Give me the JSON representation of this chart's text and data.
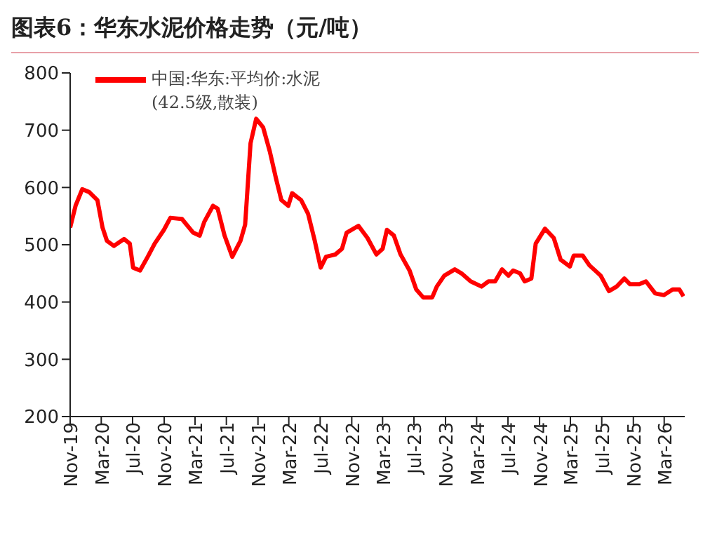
{
  "chart_data": {
    "type": "line",
    "title": "图表6：华东水泥价格走势（元/吨）",
    "x": [
      "2019-11-01",
      "2019-11-22",
      "2019-12-18",
      "2020-01-14",
      "2020-02-15",
      "2020-03-06",
      "2020-03-23",
      "2020-04-19",
      "2020-05-29",
      "2020-06-20",
      "2020-07-03",
      "2020-07-30",
      "2020-08-29",
      "2020-09-25",
      "2020-10-31",
      "2020-11-25",
      "2021-01-09",
      "2021-02-22",
      "2021-03-19",
      "2021-04-06",
      "2021-05-10",
      "2021-05-28",
      "2021-06-24",
      "2021-07-24",
      "2021-08-25",
      "2021-09-12",
      "2021-10-03",
      "2021-10-25",
      "2021-11-21",
      "2021-12-17",
      "2022-01-10",
      "2022-01-31",
      "2022-02-27",
      "2022-03-14",
      "2022-04-18",
      "2022-05-15",
      "2022-06-10",
      "2022-07-03",
      "2022-07-24",
      "2022-08-29",
      "2022-09-24",
      "2022-10-12",
      "2022-11-27",
      "2023-01-01",
      "2023-02-05",
      "2023-03-01",
      "2023-03-18",
      "2023-04-14",
      "2023-05-10",
      "2023-06-14",
      "2023-07-10",
      "2023-08-06",
      "2023-09-10",
      "2023-09-28",
      "2023-10-27",
      "2023-12-07",
      "2024-01-02",
      "2024-02-07",
      "2024-03-20",
      "2024-04-16",
      "2024-05-12",
      "2024-06-08",
      "2024-07-03",
      "2024-07-21",
      "2024-08-17",
      "2024-09-04",
      "2024-09-30",
      "2024-10-17",
      "2024-11-22",
      "2024-12-26",
      "2025-01-22",
      "2025-02-27",
      "2025-03-14",
      "2025-04-18",
      "2025-05-14",
      "2025-06-10",
      "2025-06-27",
      "2025-07-29",
      "2025-08-28",
      "2025-09-27",
      "2025-10-19",
      "2025-11-24",
      "2025-12-20",
      "2026-01-25",
      "2026-02-28",
      "2026-04-03",
      "2026-04-29",
      "2026-05-15"
    ],
    "series": [
      {
        "name": "中国:华东:平均价:水泥(42.5级,散装)",
        "color": "#ff0000",
        "values": [
          530,
          568,
          597,
          592,
          578,
          530,
          507,
          498,
          510,
          502,
          460,
          455,
          479,
          502,
          526,
          547,
          545,
          521,
          516,
          540,
          568,
          563,
          516,
          479,
          507,
          535,
          677,
          720,
          705,
          663,
          616,
          578,
          568,
          590,
          578,
          554,
          507,
          460,
          479,
          483,
          493,
          521,
          533,
          512,
          483,
          493,
          526,
          516,
          483,
          455,
          422,
          408,
          408,
          427,
          446,
          457,
          450,
          436,
          427,
          436,
          436,
          457,
          446,
          455,
          450,
          436,
          441,
          502,
          528,
          512,
          474,
          462,
          481,
          481,
          464,
          453,
          446,
          419,
          427,
          441,
          431,
          431,
          436,
          415,
          412,
          422,
          422,
          410
        ]
      }
    ],
    "xlim": [
      "2019-11-01",
      "2026-05-20"
    ],
    "xticks": [
      {
        "value": "2019-11-01",
        "label": "Nov-19"
      },
      {
        "value": "2020-03-01",
        "label": "Mar-20"
      },
      {
        "value": "2020-07-01",
        "label": "Jul-20"
      },
      {
        "value": "2020-11-01",
        "label": "Nov-20"
      },
      {
        "value": "2021-03-01",
        "label": "Mar-21"
      },
      {
        "value": "2021-07-01",
        "label": "Jul-21"
      },
      {
        "value": "2021-11-01",
        "label": "Nov-21"
      },
      {
        "value": "2022-03-01",
        "label": "Mar-22"
      },
      {
        "value": "2022-07-01",
        "label": "Jul-22"
      },
      {
        "value": "2022-11-01",
        "label": "Nov-22"
      },
      {
        "value": "2023-03-01",
        "label": "Mar-23"
      },
      {
        "value": "2023-07-01",
        "label": "Jul-23"
      },
      {
        "value": "2023-11-01",
        "label": "Nov-23"
      },
      {
        "value": "2024-03-01",
        "label": "Mar-24"
      },
      {
        "value": "2024-07-01",
        "label": "Jul-24"
      },
      {
        "value": "2024-11-01",
        "label": "Nov-24"
      },
      {
        "value": "2025-03-01",
        "label": "Mar-25"
      },
      {
        "value": "2025-07-01",
        "label": "Jul-25"
      },
      {
        "value": "2025-11-01",
        "label": "Nov-25"
      },
      {
        "value": "2026-03-01",
        "label": "Mar-26"
      }
    ],
    "ylim": [
      200,
      800
    ],
    "yticks": [
      200,
      300,
      400,
      500,
      600,
      700,
      800
    ],
    "grid": false,
    "legend": "top",
    "marker": "none",
    "line_style": "solid"
  }
}
